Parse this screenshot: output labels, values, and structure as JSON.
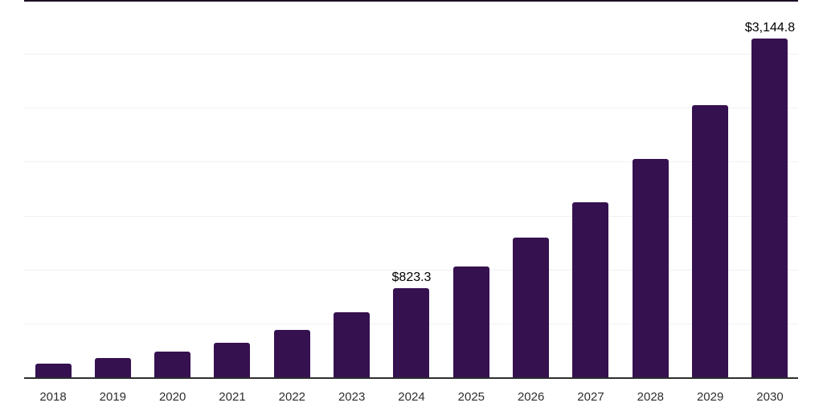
{
  "chart_data": {
    "type": "bar",
    "title": "",
    "xlabel": "",
    "ylabel": "",
    "categories": [
      "2018",
      "2019",
      "2020",
      "2021",
      "2022",
      "2023",
      "2024",
      "2025",
      "2026",
      "2027",
      "2028",
      "2029",
      "2030"
    ],
    "values": [
      130,
      178,
      237,
      318,
      438,
      603,
      823.3,
      1029,
      1296,
      1620,
      2022,
      2525,
      3144.8
    ],
    "values_note": "2024 and 2030 labeled on chart; other values estimated from gridlines (500 units per line)",
    "value_labels": {
      "2024": "$823.3",
      "2030": "$3,144.8"
    },
    "ylim": [
      0,
      3500
    ],
    "gridline_step": 500,
    "grid": true,
    "legend": "none",
    "colors": {
      "bar": "#351150",
      "top_border": "#1b0f26",
      "axis_line": "#2e2e2e",
      "gridline": "#f0f0f2",
      "tick_label": "#2e2e2e",
      "value_label": "#000000",
      "background": "#ffffff"
    }
  }
}
